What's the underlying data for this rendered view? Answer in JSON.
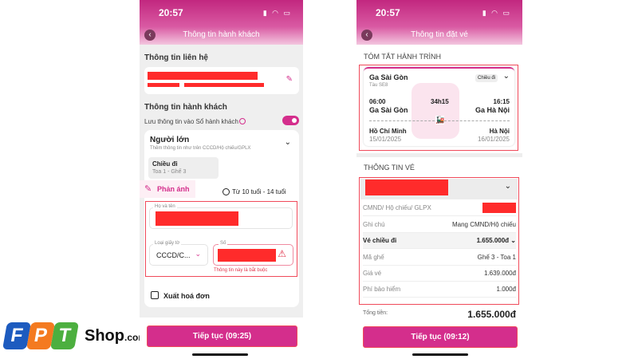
{
  "status": {
    "time": "20:57"
  },
  "left": {
    "title": "Thông tin hành khách",
    "contact_heading": "Thông tin liên hệ",
    "passenger_heading": "Thông tin hành khách",
    "save_label": "Lưu thông tin vào Sổ hành khách",
    "save_toggle_on": true,
    "passenger_type": "Người lớn",
    "passenger_hint": "Thêm thông tin như trên CCCD/Hộ chiếu/GPLX",
    "direction": "Chiều đi",
    "seat": "Toa 1 - Ghế 3",
    "feedback": "Phản ánh",
    "age_option": "Từ 10 tuổi - 14 tuổi",
    "name_label": "Họ và tên",
    "doc_type_label": "Loại giấy tờ",
    "doc_type_value": "CCCD/C...",
    "number_label": "Số",
    "error": "Thông tin này là bắt buộc",
    "invoice": "Xuất hoá đơn",
    "continue": "Tiếp tục (09:25)"
  },
  "right": {
    "title": "Thông tin đặt vé",
    "summary_heading": "TÓM TẮT HÀNH TRÌNH",
    "station": "Ga Sài Gòn",
    "train": "Tàu SE8",
    "badge": "Chiều đi",
    "depart_time": "06:00",
    "duration": "34h15",
    "arrive_time": "16:15",
    "from": "Ga Sài Gòn",
    "to": "Ga Hà Nội",
    "from_city": "Hồ Chí Minh",
    "to_city": "Hà Nội",
    "from_date": "15/01/2025",
    "to_date": "16/01/2025",
    "ticket_heading": "THÔNG TIN VÉ",
    "rows": [
      {
        "k": "CMND/ Hộ chiếu/ GLPX",
        "v": ""
      },
      {
        "k": "Ghi chú",
        "v": "Mang CMND/Hộ chiếu"
      }
    ],
    "outbound_label": "Vé chiều đi",
    "outbound_price": "1.655.000đ",
    "detail_rows": [
      {
        "k": "Mã ghế",
        "v": "Ghế 3 - Toa 1"
      },
      {
        "k": "Giá vé",
        "v": "1.639.000đ"
      },
      {
        "k": "Phí bảo hiểm",
        "v": "1.000đ"
      }
    ],
    "total_label": "Tổng tiền:",
    "total": "1.655.000đ",
    "continue": "Tiếp tục (09:12)"
  },
  "logo": {
    "text": "FPT Shop.com.vn",
    "colors": [
      "#1d5bbf",
      "#f47a20",
      "#4caf3f"
    ]
  },
  "accent": "#d42e8c"
}
